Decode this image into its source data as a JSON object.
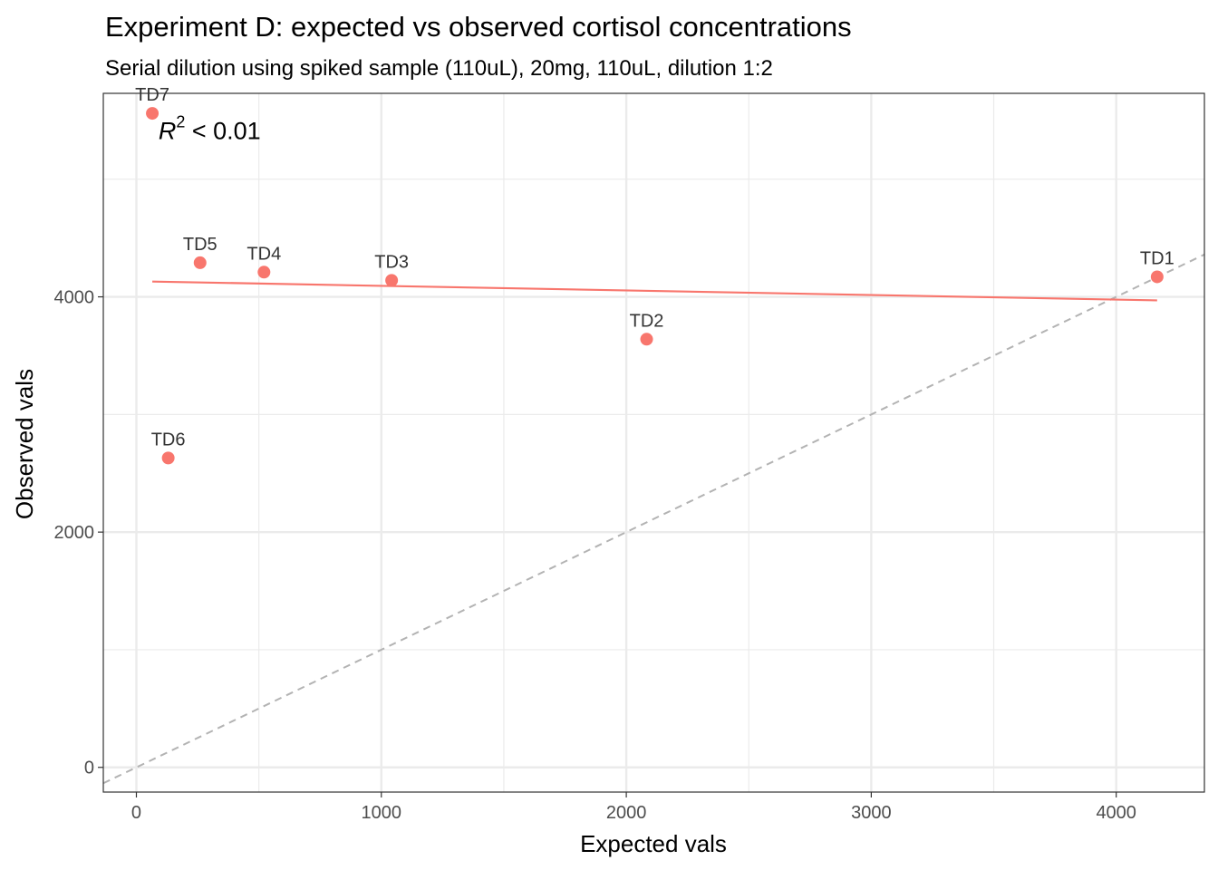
{
  "chart_data": {
    "type": "scatter",
    "title": "Experiment D: expected vs observed cortisol concentrations",
    "subtitle": "Serial dilution using spiked sample (110uL), 20mg, 110uL, dilution 1:2",
    "xlabel": "Expected vals",
    "ylabel": "Observed vals",
    "xlim": [
      -135,
      4360
    ],
    "ylim": [
      -210,
      5730
    ],
    "x_ticks": [
      0,
      1000,
      2000,
      3000,
      4000
    ],
    "y_ticks": [
      0,
      2000,
      4000
    ],
    "x_tick_labels": [
      "0",
      "1000",
      "2000",
      "3000",
      "4000"
    ],
    "y_tick_labels": [
      "0",
      "2000",
      "4000"
    ],
    "grid": true,
    "points": [
      {
        "label": "TD1",
        "x": 4167,
        "y": 4170
      },
      {
        "label": "TD2",
        "x": 2083,
        "y": 3640
      },
      {
        "label": "TD3",
        "x": 1042,
        "y": 4140
      },
      {
        "label": "TD4",
        "x": 521,
        "y": 4210
      },
      {
        "label": "TD5",
        "x": 260,
        "y": 4290
      },
      {
        "label": "TD6",
        "x": 130,
        "y": 2630
      },
      {
        "label": "TD7",
        "x": 65,
        "y": 5560
      }
    ],
    "fit_line": {
      "x": [
        65,
        4167
      ],
      "y": [
        4130,
        3970
      ]
    },
    "identity_line": {
      "slope": 1,
      "intercept": 0,
      "style": "dashed"
    },
    "annotation": {
      "text": "R",
      "superscript": "2",
      "suffix": " < 0.01",
      "x": 90,
      "y": 5340
    },
    "point_color": "#F8766D",
    "fit_color": "#F8766D",
    "identity_color": "#B3B3B3"
  }
}
